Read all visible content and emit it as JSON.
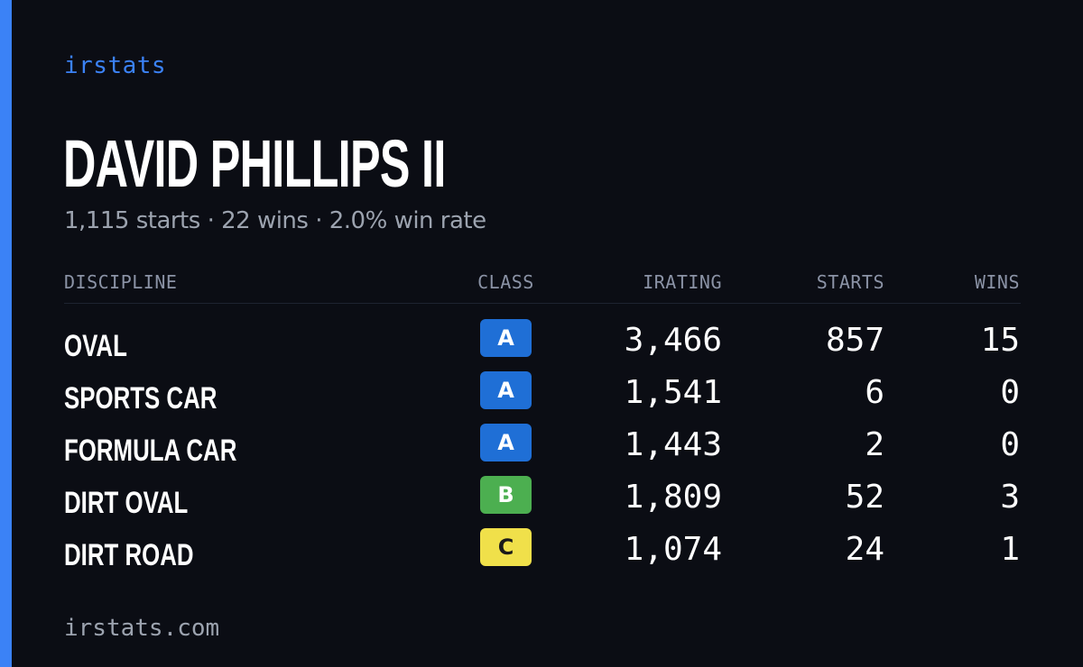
{
  "brand": "irstats",
  "driver": {
    "name": "DAVID PHILLIPS II",
    "summary": "1,115 starts · 22 wins · 2.0% win rate"
  },
  "table": {
    "headers": {
      "discipline": "DISCIPLINE",
      "class": "CLASS",
      "irating": "IRATING",
      "starts": "STARTS",
      "wins": "WINS"
    },
    "rows": [
      {
        "discipline": "OVAL",
        "class": "A",
        "class_color": "#1f6fd6",
        "class_text_color": "#ffffff",
        "irating": "3,466",
        "starts": "857",
        "wins": "15"
      },
      {
        "discipline": "SPORTS CAR",
        "class": "A",
        "class_color": "#1f6fd6",
        "class_text_color": "#ffffff",
        "irating": "1,541",
        "starts": "6",
        "wins": "0"
      },
      {
        "discipline": "FORMULA CAR",
        "class": "A",
        "class_color": "#1f6fd6",
        "class_text_color": "#ffffff",
        "irating": "1,443",
        "starts": "2",
        "wins": "0"
      },
      {
        "discipline": "DIRT OVAL",
        "class": "B",
        "class_color": "#4caf50",
        "class_text_color": "#ffffff",
        "irating": "1,809",
        "starts": "52",
        "wins": "3"
      },
      {
        "discipline": "DIRT ROAD",
        "class": "C",
        "class_color": "#f0e04a",
        "class_text_color": "#1a1a1a",
        "irating": "1,074",
        "starts": "24",
        "wins": "1"
      }
    ]
  },
  "footer": "irstats.com",
  "colors": {
    "accent": "#3b82f6",
    "background": "#0b0d14"
  }
}
